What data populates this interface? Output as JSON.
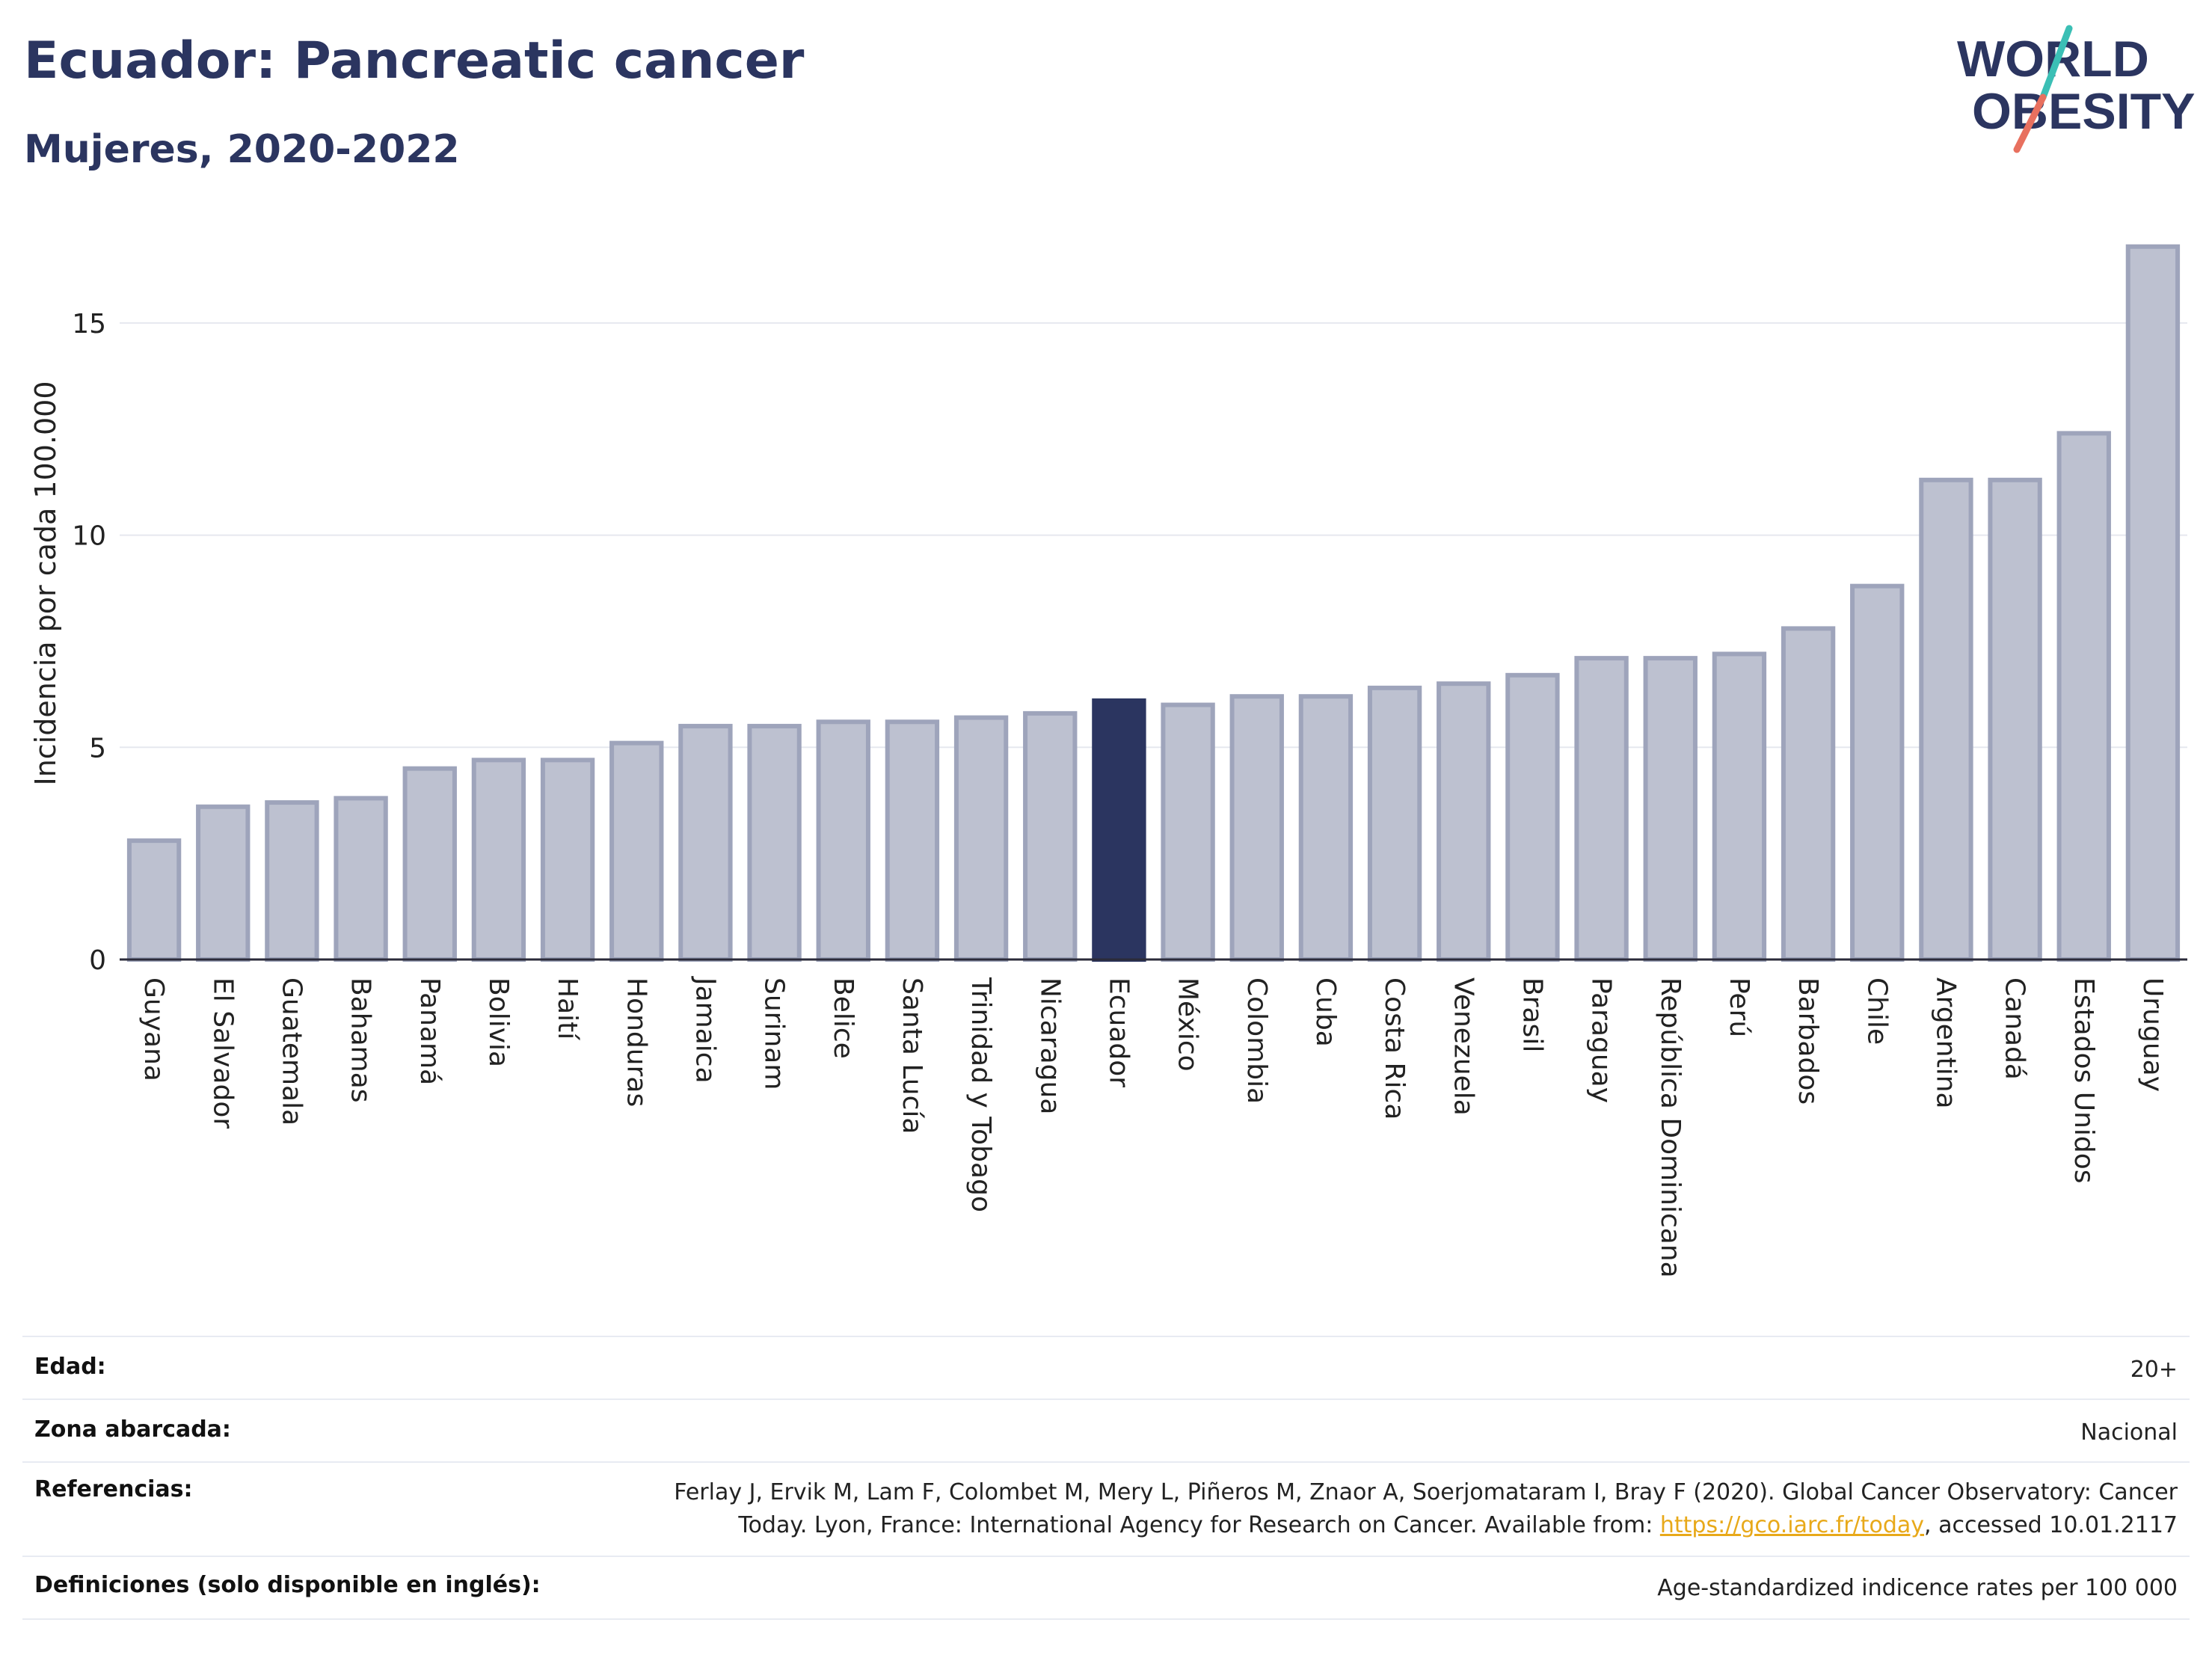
{
  "header": {
    "title": "Ecuador: Pancreatic cancer",
    "subtitle": "Mujeres, 2020-2022"
  },
  "logo": {
    "line1": "WORLD",
    "line2": "OBESITY",
    "colors": {
      "text": "#2b3560",
      "slash_teal": "#3bbfb5",
      "slash_coral": "#e8705f"
    }
  },
  "chart_data": {
    "type": "bar",
    "ylabel": "Incidencia por cada 100.000",
    "xlabel": "",
    "ylim": [
      0,
      17.5
    ],
    "yticks": [
      0,
      5,
      10,
      15
    ],
    "grid": true,
    "highlight": "Ecuador",
    "colors": {
      "bar": "#bdc1d0",
      "bar_border": "#9ea4bb",
      "highlight": "#2b3560"
    },
    "categories": [
      "Guyana",
      "El Salvador",
      "Guatemala",
      "Bahamas",
      "Panamá",
      "Bolivia",
      "Haití",
      "Honduras",
      "Jamaica",
      "Surinam",
      "Belice",
      "Santa Lucía",
      "Trinidad y Tobago",
      "Nicaragua",
      "Ecuador",
      "México",
      "Colombia",
      "Cuba",
      "Costa Rica",
      "Venezuela",
      "Brasil",
      "Paraguay",
      "República Dominicana",
      "Perú",
      "Barbados",
      "Chile",
      "Argentina",
      "Canadá",
      "Estados Unidos",
      "Uruguay"
    ],
    "values": [
      2.8,
      3.6,
      3.7,
      3.8,
      4.5,
      4.7,
      4.7,
      5.1,
      5.5,
      5.5,
      5.6,
      5.6,
      5.7,
      5.8,
      6.1,
      6.0,
      6.2,
      6.2,
      6.4,
      6.5,
      6.7,
      7.1,
      7.1,
      7.2,
      7.8,
      8.8,
      11.3,
      11.3,
      12.4,
      16.8
    ]
  },
  "footer": {
    "rows": [
      {
        "label": "Edad:",
        "value": "20+"
      },
      {
        "label": "Zona abarcada:",
        "value": "Nacional"
      },
      {
        "label": "Referencias:",
        "value_line1": "Ferlay J, Ervik M, Lam F, Colombet M, Mery L, Piñeros M, Znaor A, Soerjomataram I, Bray F (2020). Global Cancer Observatory: Cancer",
        "value_line2_pre": "Today. Lyon, France: International Agency for Research on Cancer. Available from: ",
        "link": "https://gco.iarc.fr/today",
        "value_line2_post": ", accessed 10.01.2117"
      },
      {
        "label": "Definiciones (solo disponible en inglés):",
        "value": "Age-standardized indicence rates per 100 000"
      }
    ]
  }
}
